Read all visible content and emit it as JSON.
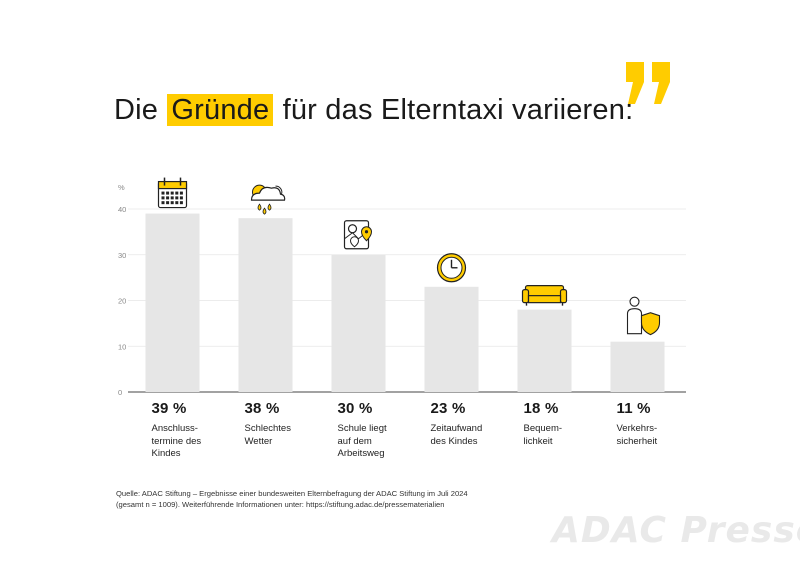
{
  "header": {
    "title_before": "Die",
    "title_highlight": "Gründe",
    "title_after": "für das Elterntaxi variieren:"
  },
  "accent_color": "#ffcc00",
  "bar_color": "#e6e6e6",
  "chart_data": {
    "type": "bar",
    "title": "Die Gründe für das Elterntaxi variieren:",
    "ylabel": "%",
    "xlabel": "",
    "ylim": [
      0,
      40
    ],
    "yticks": [
      "0",
      "10",
      "20",
      "30",
      "40"
    ],
    "grid": true,
    "categories": [
      "Anschluss-\ntermine des\nKindes",
      "Schlechtes\nWetter",
      "Schule liegt\nauf dem\nArbeitsweg",
      "Zeitaufwand\ndes Kindes",
      "Bequem-\nlichkeit",
      "Verkehrs-\nsicherheit"
    ],
    "values": [
      39,
      38,
      30,
      23,
      18,
      11
    ],
    "value_labels": [
      "39 %",
      "38 %",
      "30 %",
      "23 %",
      "18 %",
      "11 %"
    ],
    "icons": [
      "calendar-icon",
      "rain-cloud-icon",
      "map-pin-icon",
      "clock-icon",
      "sofa-icon",
      "person-shield-icon"
    ]
  },
  "footer": {
    "source_line1": "Quelle: ADAC Stiftung – Ergebnisse einer bundesweiten Elternbefragung der ADAC Stiftung im Juli 2024",
    "source_line2": "(gesamt n = 1009). Weiterführende Informationen unter: https://stiftung.adac.de/pressematerialien",
    "watermark": "ADAC Presse"
  }
}
